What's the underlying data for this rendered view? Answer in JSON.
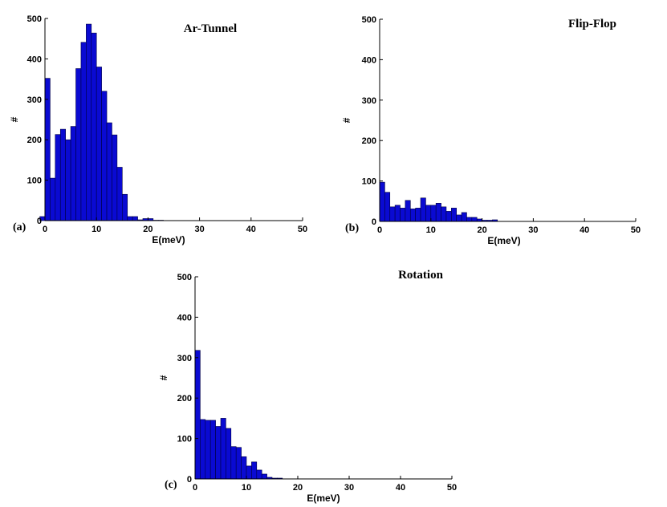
{
  "chart_data": [
    {
      "type": "bar",
      "panel_label": "(a)",
      "title": "Ar-Tunnel",
      "xlabel": "E(meV)",
      "ylabel": "#",
      "xlim": [
        0,
        50
      ],
      "ylim": [
        0,
        500
      ],
      "xticks": [
        0,
        10,
        20,
        30,
        40,
        50
      ],
      "yticks": [
        0,
        100,
        200,
        300,
        400,
        500
      ],
      "bin_width": 1,
      "bin_start": -1,
      "values": [
        10,
        352,
        105,
        213,
        226,
        200,
        233,
        376,
        441,
        486,
        464,
        380,
        320,
        242,
        212,
        132,
        65,
        10,
        10,
        2,
        5,
        5,
        1,
        1
      ]
    },
    {
      "type": "bar",
      "panel_label": "(b)",
      "title": "Flip-Flop",
      "xlabel": "E(meV)",
      "ylabel": "#",
      "xlim": [
        0,
        50
      ],
      "ylim": [
        0,
        500
      ],
      "xticks": [
        0,
        10,
        20,
        30,
        40,
        50
      ],
      "yticks": [
        0,
        100,
        200,
        300,
        400,
        500
      ],
      "bin_width": 1,
      "bin_start": 0,
      "values": [
        97,
        72,
        36,
        40,
        33,
        52,
        31,
        33,
        58,
        40,
        40,
        45,
        36,
        25,
        33,
        16,
        22,
        10,
        10,
        6,
        3,
        3,
        4
      ]
    },
    {
      "type": "bar",
      "panel_label": "(c)",
      "title": "Rotation",
      "xlabel": "E(meV)",
      "ylabel": "#",
      "xlim": [
        0,
        50
      ],
      "ylim": [
        0,
        500
      ],
      "xticks": [
        0,
        10,
        20,
        30,
        40,
        50
      ],
      "yticks": [
        0,
        100,
        200,
        300,
        400,
        500
      ],
      "bin_width": 1,
      "bin_start": 0,
      "values": [
        318,
        147,
        145,
        145,
        130,
        150,
        125,
        80,
        78,
        55,
        32,
        42,
        22,
        12,
        4,
        2,
        2
      ]
    }
  ]
}
